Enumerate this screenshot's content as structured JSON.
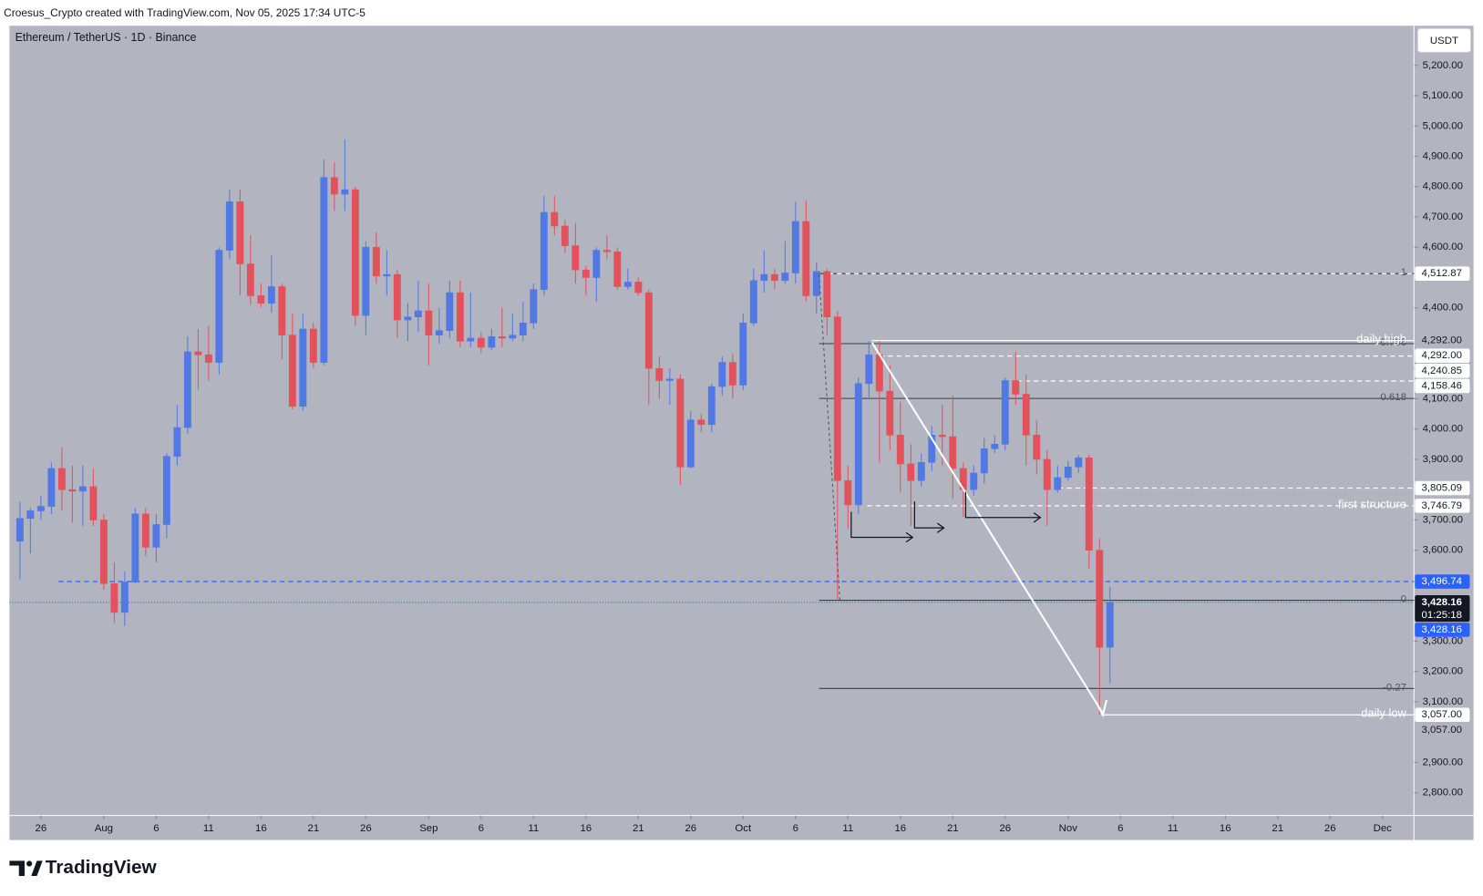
{
  "header": "Croesus_Crypto created with TradingView.com, Nov 05, 2025 17:34 UTC-5",
  "footer": {
    "logo_text": "TradingView"
  },
  "chart_data": {
    "type": "candlestick",
    "title": "Ethereum / TetherUS · 1D · Binance",
    "currency": "USDT",
    "up_color": "#5278e3",
    "down_color": "#e3525c",
    "background": "#b2b5bf",
    "x": [
      "Jul 24",
      "Jul 25",
      "Jul 26",
      "Jul 27",
      "Jul 28",
      "Jul 29",
      "Jul 30",
      "Jul 31",
      "Aug 1",
      "Aug 2",
      "Aug 3",
      "Aug 4",
      "Aug 5",
      "Aug 6",
      "Aug 7",
      "Aug 8",
      "Aug 9",
      "Aug 10",
      "Aug 11",
      "Aug 12",
      "Aug 13",
      "Aug 14",
      "Aug 15",
      "Aug 16",
      "Aug 17",
      "Aug 18",
      "Aug 19",
      "Aug 20",
      "Aug 21",
      "Aug 22",
      "Aug 23",
      "Aug 24",
      "Aug 25",
      "Aug 26",
      "Aug 27",
      "Aug 28",
      "Aug 29",
      "Aug 30",
      "Aug 31",
      "Sep 1",
      "Sep 2",
      "Sep 3",
      "Sep 4",
      "Sep 5",
      "Sep 6",
      "Sep 7",
      "Sep 8",
      "Sep 9",
      "Sep 10",
      "Sep 11",
      "Sep 12",
      "Sep 13",
      "Sep 14",
      "Sep 15",
      "Sep 16",
      "Sep 17",
      "Sep 18",
      "Sep 19",
      "Sep 20",
      "Sep 21",
      "Sep 22",
      "Sep 23",
      "Sep 24",
      "Sep 25",
      "Sep 26",
      "Sep 27",
      "Sep 28",
      "Sep 29",
      "Sep 30",
      "Oct 1",
      "Oct 2",
      "Oct 3",
      "Oct 4",
      "Oct 5",
      "Oct 6",
      "Oct 7",
      "Oct 8",
      "Oct 9",
      "Oct 10",
      "Oct 11",
      "Oct 12",
      "Oct 13",
      "Oct 14",
      "Oct 15",
      "Oct 16",
      "Oct 17",
      "Oct 18",
      "Oct 19",
      "Oct 20",
      "Oct 21",
      "Oct 22",
      "Oct 23",
      "Oct 24",
      "Oct 25",
      "Oct 26",
      "Oct 27",
      "Oct 28",
      "Oct 29",
      "Oct 30",
      "Oct 31",
      "Nov 1",
      "Nov 2",
      "Nov 3",
      "Nov 4",
      "Nov 5"
    ],
    "open": [
      3630,
      3705,
      3730,
      3745,
      3870,
      3800,
      3795,
      3810,
      3700,
      3490,
      3395,
      3495,
      3720,
      3610,
      3685,
      3910,
      4005,
      4255,
      4245,
      4220,
      4590,
      4750,
      4545,
      4440,
      4415,
      4470,
      4310,
      4075,
      4330,
      4220,
      4830,
      4775,
      4790,
      4375,
      4600,
      4505,
      4510,
      4360,
      4370,
      4390,
      4310,
      4325,
      4450,
      4290,
      4300,
      4270,
      4305,
      4300,
      4310,
      4350,
      4460,
      4715,
      4670,
      4605,
      4525,
      4500,
      4590,
      4585,
      4470,
      4485,
      4450,
      4200,
      4160,
      4165,
      3875,
      4030,
      4015,
      4140,
      4220,
      4145,
      4350,
      4490,
      4510,
      4490,
      4515,
      4685,
      4440,
      4520,
      4370,
      3830,
      3750,
      4150,
      4245,
      4125,
      3980,
      3885,
      3830,
      3890,
      3980,
      3975,
      3870,
      3800,
      3855,
      3935,
      3950,
      4160,
      4115,
      3980,
      3900,
      3800,
      3840,
      3875,
      3905,
      3600,
      3280
    ],
    "high": [
      3760,
      3740,
      3780,
      3890,
      3940,
      3880,
      3880,
      3870,
      3720,
      3560,
      3530,
      3740,
      3740,
      3720,
      3920,
      4080,
      4305,
      4330,
      4340,
      4600,
      4790,
      4790,
      4640,
      4480,
      4575,
      4480,
      4380,
      4380,
      4350,
      4890,
      4880,
      4955,
      4800,
      4620,
      4650,
      4590,
      4525,
      4415,
      4490,
      4480,
      4400,
      4490,
      4490,
      4450,
      4320,
      4330,
      4400,
      4380,
      4420,
      4480,
      4770,
      4770,
      4690,
      4680,
      4540,
      4600,
      4640,
      4600,
      4530,
      4500,
      4460,
      4240,
      4200,
      4180,
      4060,
      4050,
      4150,
      4240,
      4250,
      4380,
      4530,
      4590,
      4530,
      4620,
      4750,
      4755,
      4550,
      4530,
      4390,
      3880,
      4170,
      4290,
      4290,
      4210,
      4090,
      3950,
      3920,
      4010,
      4080,
      4110,
      3890,
      3880,
      3970,
      3980,
      4170,
      4255,
      4180,
      4030,
      3930,
      3880,
      3895,
      3915,
      3915,
      3640,
      3480
    ],
    "low": [
      3505,
      3590,
      3700,
      3720,
      3730,
      3690,
      3680,
      3680,
      3470,
      3360,
      3350,
      3490,
      3580,
      3560,
      3640,
      3880,
      3985,
      4130,
      4160,
      4180,
      4560,
      4440,
      4410,
      4400,
      4385,
      4230,
      4065,
      4060,
      4200,
      4210,
      4720,
      4720,
      4340,
      4310,
      4480,
      4440,
      4300,
      4290,
      4320,
      4210,
      4280,
      4300,
      4270,
      4270,
      4250,
      4260,
      4270,
      4290,
      4290,
      4330,
      4440,
      4640,
      4580,
      4480,
      4440,
      4420,
      4560,
      4460,
      4460,
      4440,
      4080,
      4100,
      4080,
      3815,
      3870,
      3990,
      3990,
      4110,
      4100,
      4130,
      4340,
      4450,
      4460,
      4480,
      4480,
      4420,
      4380,
      4310,
      3435,
      3670,
      3720,
      4100,
      3890,
      3930,
      3790,
      3680,
      3810,
      3860,
      3880,
      3770,
      3710,
      3780,
      3820,
      3920,
      3930,
      4080,
      3880,
      3850,
      3680,
      3790,
      3830,
      3855,
      3540,
      3057,
      3160
    ],
    "close": [
      3705,
      3730,
      3745,
      3870,
      3800,
      3795,
      3810,
      3700,
      3490,
      3395,
      3495,
      3720,
      3610,
      3685,
      3910,
      4005,
      4255,
      4245,
      4220,
      4590,
      4750,
      4545,
      4440,
      4415,
      4470,
      4310,
      4075,
      4330,
      4220,
      4830,
      4775,
      4790,
      4375,
      4600,
      4505,
      4510,
      4360,
      4370,
      4390,
      4310,
      4325,
      4450,
      4290,
      4300,
      4270,
      4305,
      4300,
      4310,
      4350,
      4460,
      4715,
      4670,
      4605,
      4525,
      4500,
      4590,
      4585,
      4470,
      4485,
      4450,
      4200,
      4160,
      4165,
      3875,
      4030,
      4015,
      4140,
      4220,
      4145,
      4350,
      4490,
      4510,
      4490,
      4515,
      4685,
      4440,
      4520,
      4370,
      3830,
      3750,
      4150,
      4245,
      4125,
      3980,
      3885,
      3830,
      3890,
      3980,
      3975,
      3870,
      3800,
      3855,
      3935,
      3950,
      4160,
      4115,
      3980,
      3900,
      3800,
      3840,
      3875,
      3905,
      3600,
      3280,
      3428.16
    ],
    "xlim": [
      "Jul 23",
      "Dec 4"
    ],
    "xticks": [
      {
        "value": "Jul 26",
        "label": "26"
      },
      {
        "value": "Aug 1",
        "label": "Aug"
      },
      {
        "value": "Aug 6",
        "label": "6"
      },
      {
        "value": "Aug 11",
        "label": "11"
      },
      {
        "value": "Aug 16",
        "label": "16"
      },
      {
        "value": "Aug 21",
        "label": "21"
      },
      {
        "value": "Aug 26",
        "label": "26"
      },
      {
        "value": "Sep 1",
        "label": "Sep"
      },
      {
        "value": "Sep 6",
        "label": "6"
      },
      {
        "value": "Sep 11",
        "label": "11"
      },
      {
        "value": "Sep 16",
        "label": "16"
      },
      {
        "value": "Sep 21",
        "label": "21"
      },
      {
        "value": "Sep 26",
        "label": "26"
      },
      {
        "value": "Oct 1",
        "label": "Oct"
      },
      {
        "value": "Oct 6",
        "label": "6"
      },
      {
        "value": "Oct 11",
        "label": "11"
      },
      {
        "value": "Oct 16",
        "label": "16"
      },
      {
        "value": "Oct 21",
        "label": "21"
      },
      {
        "value": "Oct 26",
        "label": "26"
      },
      {
        "value": "Nov 1",
        "label": "Nov"
      },
      {
        "value": "Nov 6",
        "label": "6"
      },
      {
        "value": "Nov 11",
        "label": "11"
      },
      {
        "value": "Nov 16",
        "label": "16"
      },
      {
        "value": "Nov 21",
        "label": "21"
      },
      {
        "value": "Nov 26",
        "label": "26"
      },
      {
        "value": "Dec 1",
        "label": "Dec"
      }
    ],
    "ylim": [
      2725,
      5331
    ],
    "yticks": [
      {
        "value": 5200,
        "label": "5,200.00"
      },
      {
        "value": 5100,
        "label": "5,100.00"
      },
      {
        "value": 5000,
        "label": "5,000.00"
      },
      {
        "value": 4900,
        "label": "4,900.00"
      },
      {
        "value": 4800,
        "label": "4,800.00"
      },
      {
        "value": 4700,
        "label": "4,700.00"
      },
      {
        "value": 4600,
        "label": "4,600.00"
      },
      {
        "value": 4400,
        "label": "4,400.00"
      },
      {
        "value": 4200,
        "label": "4,200.00"
      },
      {
        "value": 4100,
        "label": "4,100.00"
      },
      {
        "value": 4000,
        "label": "4,000.00"
      },
      {
        "value": 3900,
        "label": "3,900.00"
      },
      {
        "value": 3700,
        "label": "3,700.00"
      },
      {
        "value": 3600,
        "label": "3,600.00"
      },
      {
        "value": 3300,
        "label": "3,300.00"
      },
      {
        "value": 3200,
        "label": "3,200.00"
      },
      {
        "value": 3100,
        "label": "3,100.00"
      },
      {
        "value": 2900,
        "label": "2,900.00"
      },
      {
        "value": 2800,
        "label": "2,800.00"
      }
    ],
    "fib_levels": [
      {
        "ratio": 1,
        "price": 4512.87
      },
      {
        "ratio": 0.786,
        "price": 4282
      },
      {
        "ratio": 0.618,
        "price": 4101
      },
      {
        "ratio": 0,
        "price": 3435
      },
      {
        "ratio": -0.27,
        "price": 3144
      }
    ],
    "price_lines": [
      {
        "price": 4512.87,
        "style": "dashed",
        "color": "#ffffff"
      },
      {
        "price": 4292,
        "style": "solid",
        "color": "#ffffff",
        "note": "daily high"
      },
      {
        "price": 4240.85,
        "style": "dashed",
        "color": "#ffffff"
      },
      {
        "price": 4158.46,
        "style": "dashed",
        "color": "#ffffff"
      },
      {
        "price": 3805.09,
        "style": "dashed",
        "color": "#ffffff"
      },
      {
        "price": 3746.79,
        "style": "dashed",
        "color": "#ffffff",
        "note": "first structure"
      },
      {
        "price": 3496.74,
        "style": "dashed",
        "color": "#2962ff"
      },
      {
        "price": 3428.16,
        "style": "dotted",
        "color": "#1b8a8a"
      },
      {
        "price": 3057,
        "style": "solid",
        "color": "#ffffff",
        "note": "daily low"
      }
    ],
    "price_tags": [
      {
        "value": 4512.87,
        "label": "4,512.87",
        "style": "light"
      },
      {
        "value": 4292,
        "label": "4,292.00",
        "style": "plain"
      },
      {
        "value": 4292,
        "label": "4,292.00",
        "style": "light"
      },
      {
        "value": 4240.85,
        "label": "4,240.85",
        "style": "light"
      },
      {
        "value": 4158.46,
        "label": "4,158.46",
        "style": "light"
      },
      {
        "value": 3805.09,
        "label": "3,805.09",
        "style": "light"
      },
      {
        "value": 3746.79,
        "label": "3,746.79",
        "style": "light"
      },
      {
        "value": 3496.74,
        "label": "3,496.74",
        "style": "blue"
      },
      {
        "value": 3428.16,
        "label": "3,428.16",
        "style": "dark",
        "countdown": "01:25:18"
      },
      {
        "value": 3428.16,
        "label": "3,428.16",
        "style": "blue"
      },
      {
        "value": 3057,
        "label": "3,057.00",
        "style": "light"
      },
      {
        "value": 3057,
        "label": "3,057.00",
        "style": "plain"
      }
    ]
  }
}
